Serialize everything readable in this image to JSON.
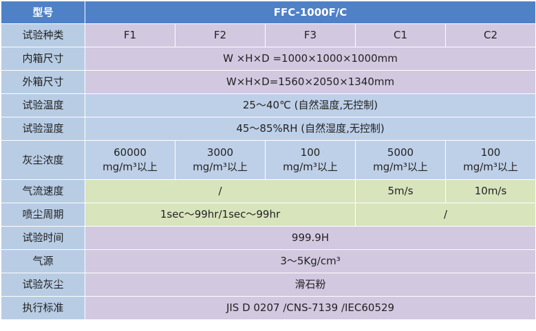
{
  "header": [
    "型号",
    "FFC-1000F/C"
  ],
  "rows": [
    [
      "试验种类",
      "F1",
      "F2",
      "F3",
      "C1",
      "C2"
    ],
    [
      "内箱尺寸",
      "W ×H×D =1000×1000×1000mm"
    ],
    [
      "外箱尺寸",
      "W×H×D=1560×2050×1340mm"
    ],
    [
      "试验温度",
      "25～40℃ (自然温度,无控制)"
    ],
    [
      "试验湿度",
      "45～85%RH (自然湿度,无控制)"
    ],
    [
      "灰尘浓度",
      "60000\nmg/m³以上",
      "3000\nmg/m³以上",
      "100\nmg/m³以上",
      "5000\nmg/m³以上",
      "100\nmg/m³以上"
    ],
    [
      "气流速度",
      "/",
      "5m/s",
      "10m/s"
    ],
    [
      "喷尘周期",
      "1sec～99hr/1sec～99hr",
      "/"
    ],
    [
      "试验时间",
      "999.9H"
    ],
    [
      "气源",
      "3～5Kg/cm³"
    ],
    [
      "试验灰尘",
      "滑石粉"
    ],
    [
      "执行标准",
      "JIS D 0207 /CNS-7139 /IEC60529"
    ]
  ]
}
